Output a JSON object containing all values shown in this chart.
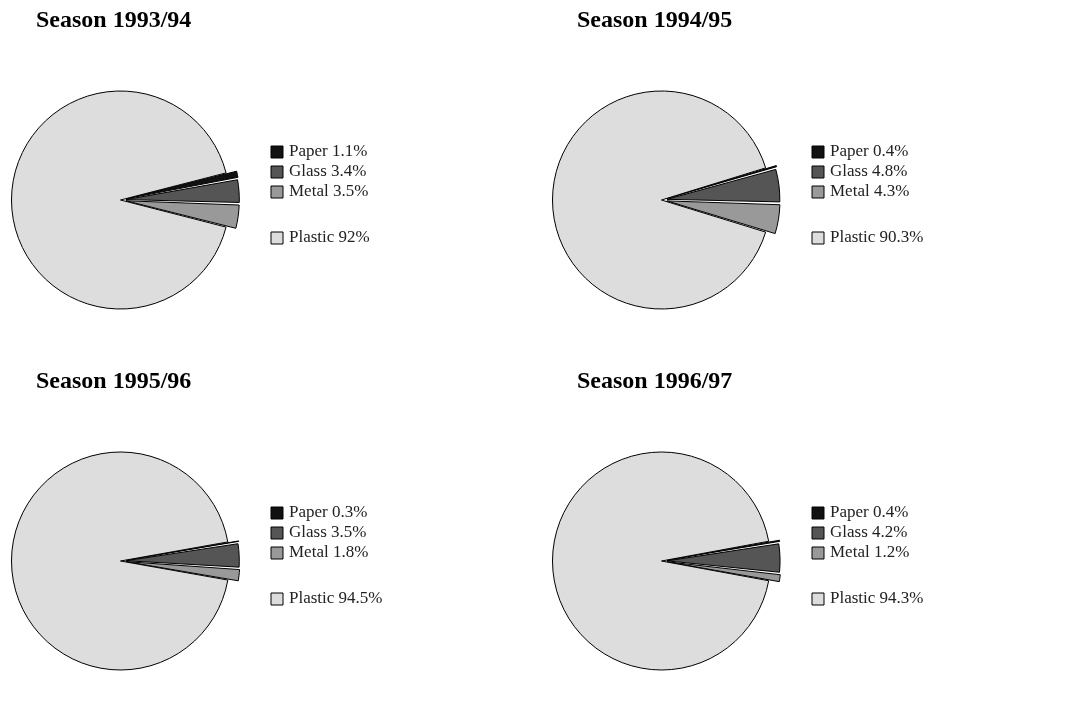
{
  "chart_data": [
    {
      "type": "pie",
      "title": "Season 1993/94",
      "categories": [
        "Paper",
        "Glass",
        "Metal",
        "Plastic"
      ],
      "values": [
        1.1,
        3.4,
        3.5,
        92
      ],
      "value_labels": [
        "1.1%",
        "3.4%",
        "3.5%",
        "92%"
      ],
      "colors": [
        "#111111",
        "#555555",
        "#999999",
        "#dddddd"
      ],
      "data_labels": true,
      "legend": "right"
    },
    {
      "type": "pie",
      "title": "Season 1994/95",
      "categories": [
        "Paper",
        "Glass",
        "Metal",
        "Plastic"
      ],
      "values": [
        0.4,
        4.8,
        4.3,
        90.3
      ],
      "value_labels": [
        "0.4%",
        "4.8%",
        "4.3%",
        "90.3%"
      ],
      "colors": [
        "#111111",
        "#555555",
        "#999999",
        "#dddddd"
      ],
      "data_labels": true,
      "legend": "right"
    },
    {
      "type": "pie",
      "title": "Season 1995/96",
      "categories": [
        "Paper",
        "Glass",
        "Metal",
        "Plastic"
      ],
      "values": [
        0.3,
        3.5,
        1.8,
        94.5
      ],
      "value_labels": [
        "0.3%",
        "3.5%",
        "1.8%",
        "94.5%"
      ],
      "colors": [
        "#111111",
        "#555555",
        "#999999",
        "#dddddd"
      ],
      "data_labels": true,
      "legend": "right"
    },
    {
      "type": "pie",
      "title": "Season 1996/97",
      "categories": [
        "Paper",
        "Glass",
        "Metal",
        "Plastic"
      ],
      "values": [
        0.4,
        4.2,
        1.2,
        94.3
      ],
      "value_labels": [
        "0.4%",
        "4.2%",
        "1.2%",
        "94.3%"
      ],
      "colors": [
        "#111111",
        "#555555",
        "#999999",
        "#dddddd"
      ],
      "data_labels": true,
      "legend": "right"
    }
  ]
}
